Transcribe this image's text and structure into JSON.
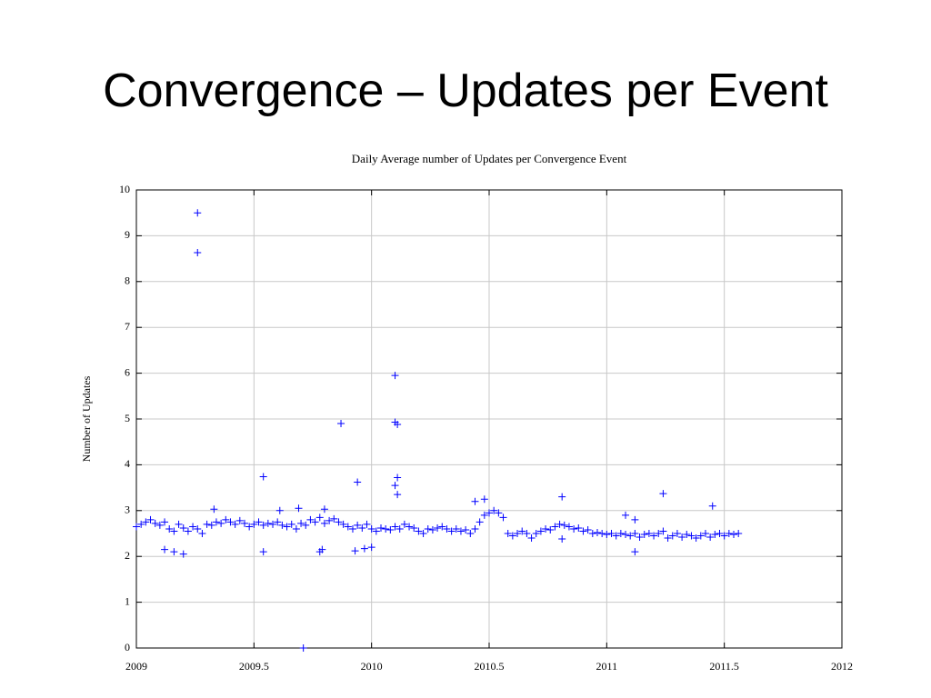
{
  "slide": {
    "title": "Convergence – Updates per Event"
  },
  "chart_data": {
    "type": "scatter",
    "title": "Daily Average number of Updates per Convergence Event",
    "y_label": "Number of Updates",
    "color": "#0000ff",
    "marker": "+",
    "grid": true,
    "xlim": [
      2009,
      2012
    ],
    "ylim": [
      0,
      10
    ],
    "xticks": [
      2009,
      2009.5,
      2010,
      2010.5,
      2011,
      2011.5,
      2012
    ],
    "yticks": [
      0,
      1,
      2,
      3,
      4,
      5,
      6,
      7,
      8,
      9,
      10
    ],
    "x": [
      2009.0,
      2009.02,
      2009.04,
      2009.06,
      2009.08,
      2009.1,
      2009.12,
      2009.14,
      2009.16,
      2009.18,
      2009.2,
      2009.22,
      2009.24,
      2009.26,
      2009.28,
      2009.3,
      2009.32,
      2009.34,
      2009.36,
      2009.38,
      2009.4,
      2009.42,
      2009.44,
      2009.46,
      2009.48,
      2009.5,
      2009.52,
      2009.54,
      2009.56,
      2009.58,
      2009.6,
      2009.62,
      2009.64,
      2009.66,
      2009.68,
      2009.7,
      2009.72,
      2009.74,
      2009.76,
      2009.78,
      2009.8,
      2009.82,
      2009.84,
      2009.86,
      2009.88,
      2009.9,
      2009.92,
      2009.94,
      2009.96,
      2009.98,
      2010.0,
      2010.02,
      2010.04,
      2010.06,
      2010.08,
      2010.1,
      2010.12,
      2010.14,
      2010.16,
      2010.18,
      2010.2,
      2010.22,
      2010.24,
      2010.26,
      2010.28,
      2010.3,
      2010.32,
      2010.34,
      2010.36,
      2010.38,
      2010.4,
      2010.42,
      2010.44,
      2010.46,
      2010.48,
      2010.5,
      2010.52,
      2010.54,
      2010.56,
      2010.58,
      2010.6,
      2010.62,
      2010.64,
      2010.66,
      2010.68,
      2010.7,
      2010.72,
      2010.74,
      2010.76,
      2010.78,
      2010.8,
      2010.82,
      2010.84,
      2010.86,
      2010.88,
      2010.9,
      2010.92,
      2010.94,
      2010.96,
      2010.98,
      2011.0,
      2011.02,
      2011.04,
      2011.06,
      2011.08,
      2011.1,
      2011.12,
      2011.14,
      2011.16,
      2011.18,
      2011.2,
      2011.22,
      2011.24,
      2011.26,
      2011.28,
      2011.3,
      2011.32,
      2011.34,
      2011.36,
      2011.38,
      2011.4,
      2011.42,
      2011.44,
      2011.46,
      2011.48,
      2011.5,
      2011.52,
      2011.54,
      2011.56,
      2009.26,
      2009.26,
      2009.87,
      2010.1,
      2010.1,
      2010.11,
      2010.11,
      2010.1,
      2010.11,
      2009.54,
      2009.94,
      2010.48,
      2010.44,
      2010.81,
      2011.24,
      2011.45,
      2009.71,
      2009.78,
      2009.79,
      2009.2,
      2009.54,
      2009.12,
      2009.16,
      2009.93,
      2009.97,
      2010.0,
      2011.12,
      2009.33,
      2009.69,
      2009.61,
      2009.8,
      2010.81,
      2011.08,
      2011.12
    ],
    "values": [
      2.65,
      2.7,
      2.75,
      2.8,
      2.72,
      2.68,
      2.75,
      2.6,
      2.55,
      2.7,
      2.62,
      2.55,
      2.65,
      2.6,
      2.5,
      2.7,
      2.68,
      2.75,
      2.72,
      2.8,
      2.75,
      2.7,
      2.78,
      2.72,
      2.65,
      2.7,
      2.75,
      2.68,
      2.72,
      2.7,
      2.75,
      2.68,
      2.65,
      2.7,
      2.6,
      2.72,
      2.68,
      2.8,
      2.75,
      2.85,
      2.72,
      2.78,
      2.82,
      2.75,
      2.7,
      2.65,
      2.6,
      2.68,
      2.62,
      2.7,
      2.6,
      2.55,
      2.62,
      2.6,
      2.58,
      2.65,
      2.6,
      2.7,
      2.65,
      2.62,
      2.55,
      2.5,
      2.6,
      2.58,
      2.62,
      2.65,
      2.6,
      2.55,
      2.6,
      2.55,
      2.58,
      2.5,
      2.6,
      2.75,
      2.9,
      2.95,
      3.0,
      2.95,
      2.85,
      2.5,
      2.45,
      2.5,
      2.55,
      2.5,
      2.4,
      2.5,
      2.55,
      2.6,
      2.58,
      2.65,
      2.7,
      2.68,
      2.65,
      2.6,
      2.62,
      2.55,
      2.58,
      2.5,
      2.52,
      2.5,
      2.48,
      2.5,
      2.45,
      2.5,
      2.48,
      2.45,
      2.5,
      2.42,
      2.48,
      2.5,
      2.45,
      2.5,
      2.55,
      2.4,
      2.45,
      2.5,
      2.42,
      2.48,
      2.45,
      2.4,
      2.45,
      2.5,
      2.42,
      2.48,
      2.5,
      2.45,
      2.5,
      2.48,
      2.5,
      9.5,
      8.63,
      4.9,
      5.95,
      4.93,
      4.88,
      3.72,
      3.55,
      3.35,
      3.74,
      3.62,
      3.25,
      3.2,
      3.3,
      3.37,
      3.1,
      0.0,
      2.1,
      2.15,
      2.05,
      2.1,
      2.15,
      2.1,
      2.12,
      2.17,
      2.2,
      2.1,
      3.03,
      3.05,
      3.0,
      3.03,
      2.38,
      2.9,
      2.8
    ]
  }
}
